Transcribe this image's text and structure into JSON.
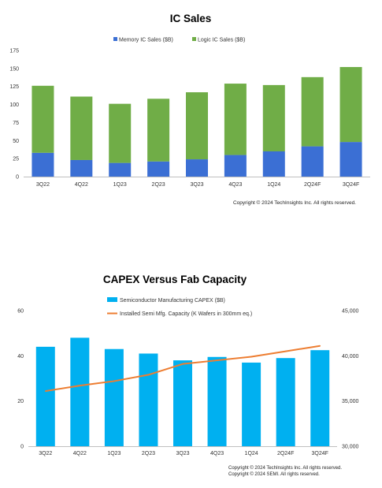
{
  "chart_data": [
    {
      "type": "bar",
      "stacked": true,
      "title": "IC Sales",
      "xlabel": "",
      "ylabel": "",
      "ylim": [
        0,
        175
      ],
      "yticks": [
        0,
        25,
        50,
        75,
        100,
        125,
        150,
        175
      ],
      "legend": "top",
      "grid": false,
      "categories": [
        "3Q22",
        "4Q22",
        "1Q23",
        "2Q23",
        "3Q23",
        "4Q23",
        "1Q24",
        "2Q24F",
        "3Q24F"
      ],
      "series": [
        {
          "name": "Memory IC Sales ($B)",
          "color": "#3b6fd4",
          "values": [
            33,
            23,
            19,
            21,
            24,
            30,
            35,
            42,
            48
          ]
        },
        {
          "name": "Logic IC Sales ($B)",
          "color": "#70ad47",
          "values": [
            93,
            88,
            82,
            87,
            93,
            99,
            92,
            96,
            104
          ]
        }
      ],
      "footer": "Copyright © 2024 TechInsights Inc.  All rights reserved."
    },
    {
      "type": "bar",
      "title": "CAPEX Versus Fab Capacity",
      "xlabel": "",
      "ylabel": "",
      "ylim": [
        0,
        60
      ],
      "yticks": [
        0,
        20,
        40,
        60
      ],
      "y2lim": [
        30000,
        45000
      ],
      "y2ticks": [
        "30,000",
        "35,000",
        "40,000",
        "45,000"
      ],
      "legend": "top",
      "grid": false,
      "categories": [
        "3Q22",
        "4Q22",
        "1Q23",
        "2Q23",
        "3Q23",
        "4Q23",
        "1Q24",
        "2Q24F",
        "3Q24F"
      ],
      "series": [
        {
          "name": "Semiconductor Manufacturing CAPEX ($B)",
          "kind": "bar",
          "axis": "left",
          "color": "#00b0f0",
          "values": [
            44,
            48,
            43,
            41,
            38,
            39.5,
            37,
            39,
            42.5
          ]
        },
        {
          "name": "Installed Semi Mfg. Capacity (K Wafers in 300mm eq.)",
          "kind": "line",
          "axis": "right",
          "color": "#ed7d31",
          "values": [
            36100,
            36700,
            37200,
            37900,
            39100,
            39500,
            39900,
            40500,
            41100
          ]
        }
      ],
      "footer": [
        "Copyright © 2024 TechInsights Inc.  All rights reserved.",
        "Copyright © 2024 SEMI.  All rights reserved."
      ]
    }
  ]
}
